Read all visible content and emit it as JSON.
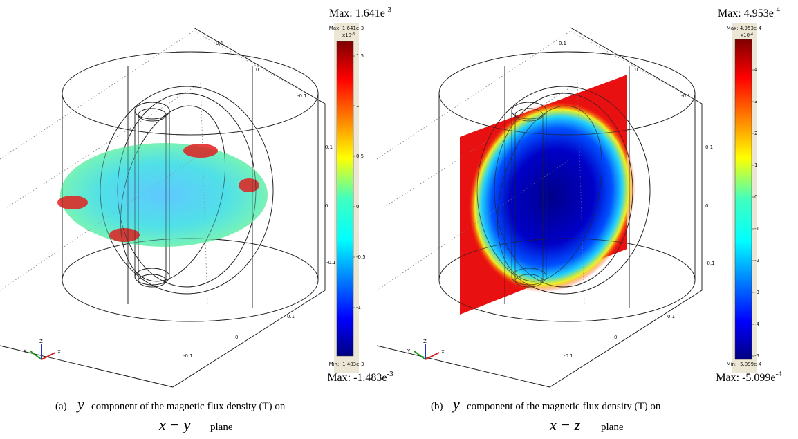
{
  "panels": [
    {
      "label": "(a)",
      "caption_variable": "y",
      "caption": "component of the magnetic flux density (T) on",
      "caption_plane_var": "x − y",
      "caption_plane": "plane",
      "max_label": {
        "text": "Max: 1.641e",
        "sup": "-3"
      },
      "min_label": {
        "text": "Max: -1.483e",
        "sup": "-3"
      },
      "colorbar": {
        "max": "Max: 1.641e-3",
        "min": "Min: -1.483e-3",
        "scale": "x10",
        "scale_exp": "-3",
        "ticks": [
          "1.5",
          "1",
          "0.5",
          "0",
          "-0.5",
          "-1"
        ]
      },
      "axis_ticks": [
        "0.1",
        "0",
        "-0.1",
        "0.1",
        "0",
        "-0.1",
        "0.1",
        "0",
        "-0.1"
      ],
      "triad": [
        "Y",
        "Z",
        "X"
      ]
    },
    {
      "label": "(b)",
      "caption_variable": "y",
      "caption": "component of the magnetic flux density (T) on",
      "caption_plane_var": "x − z",
      "caption_plane": "plane",
      "max_label": {
        "text": "Max: 4.953e",
        "sup": "-4"
      },
      "min_label": {
        "text": "Max: -5.099e",
        "sup": "-4"
      },
      "colorbar": {
        "max": "Max: 4.953e-4",
        "min": "Min: -5.099e-4",
        "scale": "x10",
        "scale_exp": "-4",
        "ticks": [
          "4",
          "3",
          "2",
          "1",
          "0",
          "-1",
          "-2",
          "-3",
          "-4",
          "-5"
        ]
      },
      "axis_ticks": [
        "0.1",
        "0",
        "-0.1",
        "0.1",
        "0",
        "-0.1",
        "0.1",
        "0",
        "-0.1"
      ],
      "triad": [
        "Y",
        "Z",
        "X"
      ]
    }
  ]
}
